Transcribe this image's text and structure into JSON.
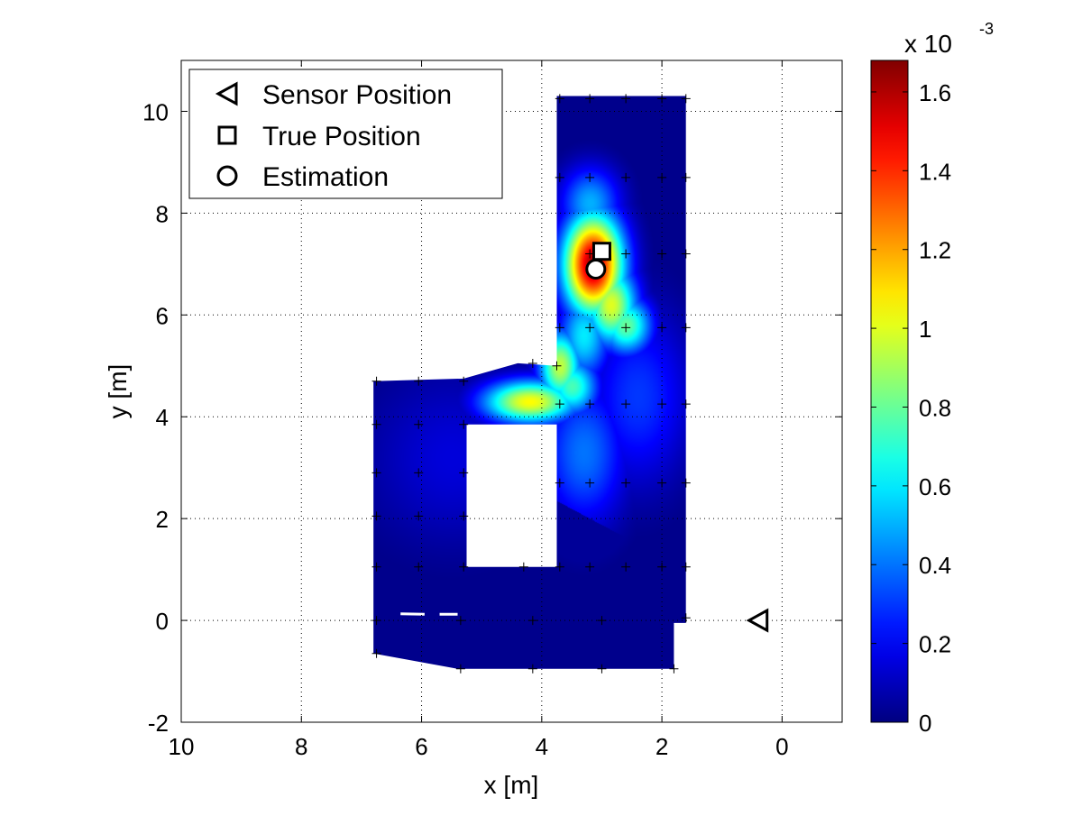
{
  "chart_data": {
    "type": "heatmap",
    "title": "",
    "xlabel": "x [m]",
    "ylabel": "y [m]",
    "x_reversed": true,
    "xlim": [
      -1,
      10
    ],
    "ylim": [
      -2,
      11
    ],
    "xticks": [
      "10",
      "8",
      "6",
      "4",
      "2",
      "0"
    ],
    "yticks": [
      "-2",
      "0",
      "2",
      "4",
      "6",
      "8",
      "10"
    ],
    "grid": true,
    "colorbar": {
      "colormap": "jet",
      "range": [
        0,
        0.00168
      ],
      "ticks": [
        "0",
        "0.2",
        "0.4",
        "0.6",
        "0.8",
        "1",
        "1.2",
        "1.4",
        "1.6"
      ],
      "tick_values": [
        0,
        0.2,
        0.4,
        0.6,
        0.8,
        1.0,
        1.2,
        1.4,
        1.6
      ],
      "exponent_base": "x 10",
      "exponent": "-3"
    },
    "legend": {
      "placement": "top-left",
      "entries": [
        {
          "label": "Sensor Position",
          "marker": "triangle-left"
        },
        {
          "label": "True Position",
          "marker": "square"
        },
        {
          "label": "Estimation",
          "marker": "circle"
        }
      ]
    },
    "sensor_position": [
      0.4,
      0
    ],
    "true_position": [
      3.0,
      7.25
    ],
    "estimation": [
      3.1,
      6.9
    ],
    "region_polygons": [
      [
        [
          1.6,
          10.3
        ],
        [
          3.75,
          10.3
        ],
        [
          3.75,
          5.0
        ],
        [
          4.4,
          5.05
        ],
        [
          5.3,
          4.75
        ],
        [
          6.8,
          4.7
        ],
        [
          6.8,
          -0.65
        ],
        [
          5.4,
          -0.95
        ],
        [
          1.8,
          -0.95
        ],
        [
          1.8,
          -0.05
        ],
        [
          1.6,
          -0.05
        ]
      ]
    ],
    "hole_polygon": [
      [
        3.75,
        1.05
      ],
      [
        5.25,
        1.05
      ],
      [
        5.25,
        3.85
      ],
      [
        3.75,
        3.85
      ]
    ],
    "hot_spots": [
      {
        "x": 3.15,
        "y": 7.0,
        "value": 1.62,
        "sx": 0.35,
        "sy": 0.7
      },
      {
        "x": 2.85,
        "y": 6.2,
        "value": 1.0,
        "sx": 0.3,
        "sy": 0.55
      },
      {
        "x": 2.6,
        "y": 5.8,
        "value": 0.8,
        "sx": 0.3,
        "sy": 0.4
      },
      {
        "x": 4.2,
        "y": 4.3,
        "value": 1.05,
        "sx": 0.55,
        "sy": 0.3
      },
      {
        "x": 3.7,
        "y": 5.0,
        "value": 0.95,
        "sx": 0.25,
        "sy": 0.5
      },
      {
        "x": 3.3,
        "y": 5.6,
        "value": 0.6,
        "sx": 0.3,
        "sy": 0.6
      },
      {
        "x": 3.5,
        "y": 4.6,
        "value": 0.75,
        "sx": 0.3,
        "sy": 0.4
      },
      {
        "x": 3.2,
        "y": 8.2,
        "value": 0.5,
        "sx": 0.35,
        "sy": 0.5
      },
      {
        "x": 3.3,
        "y": 3.3,
        "value": 0.4,
        "sx": 0.5,
        "sy": 1.0
      },
      {
        "x": 2.4,
        "y": 4.4,
        "value": 0.3,
        "sx": 0.6,
        "sy": 1.2
      },
      {
        "x": 5.5,
        "y": 3.2,
        "value": 0.15,
        "sx": 1.0,
        "sy": 1.2
      }
    ],
    "low_wedge": [
      [
        1.6,
        1.0
      ],
      [
        3.75,
        2.35
      ],
      [
        3.75,
        -1.0
      ],
      [
        1.6,
        -1.0
      ]
    ],
    "grid_markers": [
      [
        3.7,
        10.25
      ],
      [
        3.2,
        10.25
      ],
      [
        2.6,
        10.25
      ],
      [
        2.0,
        10.25
      ],
      [
        1.6,
        10.25
      ],
      [
        3.7,
        8.7
      ],
      [
        3.2,
        8.7
      ],
      [
        2.6,
        8.7
      ],
      [
        2.0,
        8.7
      ],
      [
        1.6,
        8.7
      ],
      [
        3.2,
        7.2
      ],
      [
        2.6,
        7.2
      ],
      [
        2.0,
        7.2
      ],
      [
        1.6,
        7.2
      ],
      [
        3.7,
        5.75
      ],
      [
        3.2,
        5.75
      ],
      [
        2.6,
        5.75
      ],
      [
        2.0,
        5.75
      ],
      [
        1.6,
        5.75
      ],
      [
        4.15,
        5.05
      ],
      [
        3.75,
        5.0
      ],
      [
        6.75,
        4.7
      ],
      [
        6.05,
        4.7
      ],
      [
        5.3,
        4.7
      ],
      [
        3.7,
        4.25
      ],
      [
        3.2,
        4.25
      ],
      [
        2.6,
        4.25
      ],
      [
        2.0,
        4.25
      ],
      [
        1.6,
        4.25
      ],
      [
        6.75,
        3.85
      ],
      [
        6.05,
        3.85
      ],
      [
        5.3,
        3.85
      ],
      [
        6.75,
        2.9
      ],
      [
        6.05,
        2.9
      ],
      [
        5.3,
        2.9
      ],
      [
        3.7,
        2.7
      ],
      [
        3.2,
        2.7
      ],
      [
        2.6,
        2.7
      ],
      [
        2.0,
        2.7
      ],
      [
        1.6,
        2.7
      ],
      [
        6.75,
        2.05
      ],
      [
        6.05,
        2.05
      ],
      [
        5.3,
        2.05
      ],
      [
        6.75,
        1.05
      ],
      [
        6.05,
        1.05
      ],
      [
        5.3,
        1.05
      ],
      [
        4.3,
        1.05
      ],
      [
        3.7,
        1.05
      ],
      [
        3.2,
        1.05
      ],
      [
        2.6,
        1.05
      ],
      [
        2.0,
        1.05
      ],
      [
        1.6,
        1.05
      ],
      [
        6.75,
        0.0
      ],
      [
        5.35,
        0.0
      ],
      [
        4.15,
        0.0
      ],
      [
        3.0,
        0.0
      ],
      [
        1.6,
        0.05
      ],
      [
        6.75,
        -0.65
      ],
      [
        5.35,
        -0.95
      ],
      [
        4.15,
        -0.95
      ],
      [
        3.0,
        -0.95
      ],
      [
        1.8,
        -0.95
      ]
    ],
    "dash_segments": [
      [
        [
          6.35,
          0.13
        ],
        [
          5.95,
          0.12
        ]
      ],
      [
        [
          5.7,
          0.12
        ],
        [
          5.4,
          0.12
        ]
      ]
    ]
  }
}
